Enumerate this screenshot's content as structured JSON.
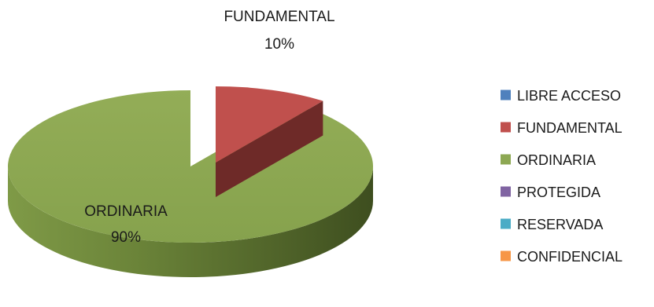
{
  "chart_data": {
    "type": "pie",
    "style": "3d-exploded",
    "title": "",
    "categories": [
      "LIBRE ACCESO",
      "FUNDAMENTAL",
      "ORDINARIA",
      "PROTEGIDA",
      "RESERVADA",
      "CONFIDENCIAL"
    ],
    "values": [
      0,
      10,
      90,
      0,
      0,
      0
    ],
    "data_labels": [
      {
        "category": "FUNDAMENTAL",
        "name": "FUNDAMENTAL",
        "percent": "10%"
      },
      {
        "category": "ORDINARIA",
        "name": "ORDINARIA",
        "percent": "90%"
      }
    ],
    "colors": [
      "#4F81BD",
      "#C0504D",
      "#8DA853",
      "#8064A2",
      "#4BACC6",
      "#F79646"
    ],
    "legend_position": "right"
  }
}
